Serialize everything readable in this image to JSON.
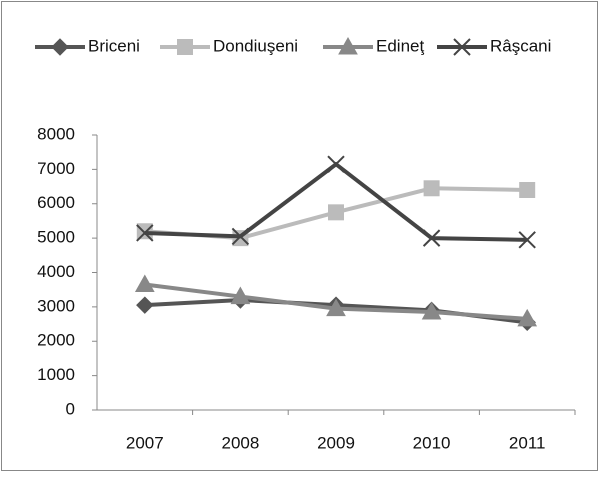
{
  "chart_data": {
    "type": "line",
    "categories": [
      "2007",
      "2008",
      "2009",
      "2010",
      "2011"
    ],
    "series": [
      {
        "name": "Briceni",
        "color": "#555555",
        "marker": "diamond",
        "values": [
          3050,
          3200,
          3050,
          2900,
          2550
        ]
      },
      {
        "name": "Dondiuşeni",
        "color": "#bbbbbb",
        "marker": "square",
        "values": [
          5200,
          5000,
          5750,
          6450,
          6400
        ]
      },
      {
        "name": "Edineţ",
        "color": "#888888",
        "marker": "triangle",
        "values": [
          3650,
          3300,
          2950,
          2850,
          2650
        ]
      },
      {
        "name": "Râşcani",
        "color": "#444444",
        "marker": "x",
        "values": [
          5150,
          5050,
          7150,
          5000,
          4950
        ]
      }
    ],
    "ylim": [
      0,
      8000
    ],
    "yticks": [
      0,
      1000,
      2000,
      3000,
      4000,
      5000,
      6000,
      7000,
      8000
    ],
    "legend": "top",
    "grid": false
  }
}
